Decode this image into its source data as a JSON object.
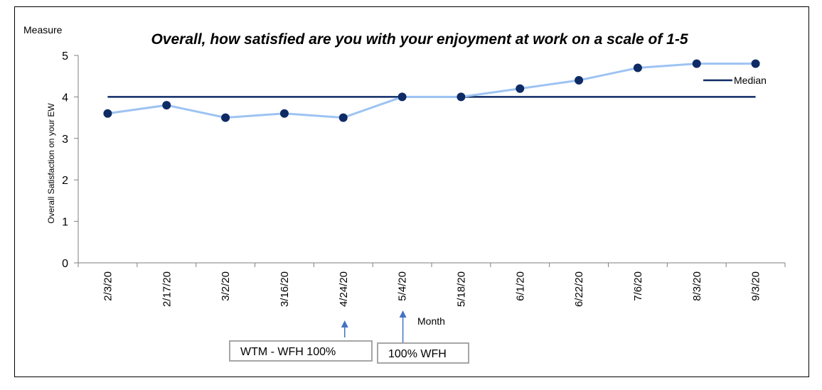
{
  "chart_data": {
    "type": "line",
    "title": "Overall, how satisfied are you with your enjoyment at work on a scale of 1-5",
    "corner_label": "Measure",
    "ylabel": "Overall Satisfaction on your EW",
    "xlabel": "Month",
    "ylim": [
      0,
      5
    ],
    "yticks": [
      0,
      1,
      2,
      3,
      4,
      5
    ],
    "categories": [
      "2/3/20",
      "2/17/20",
      "3/2/20",
      "3/16/20",
      "4/24/20",
      "5/4/20",
      "5/18/20",
      "6/1/20",
      "6/22/20",
      "7/6/20",
      "8/3/20",
      "9/3/20"
    ],
    "series": [
      {
        "values": [
          3.6,
          3.8,
          3.5,
          3.6,
          3.5,
          4.0,
          4.0,
          4.2,
          4.4,
          4.7,
          4.8,
          4.8
        ],
        "line_color": "#9dc3f2",
        "marker_color": "#0f2b66"
      }
    ],
    "reference_line": {
      "name": "Median",
      "value": 4,
      "color": "#0f2b66"
    },
    "legend": {
      "entry": "Median",
      "placement": "top-right"
    },
    "grid": false,
    "annotations": [
      {
        "text": "WTM - WFH 100%",
        "category": "4/24/20"
      },
      {
        "text": "100% WFH",
        "category": "5/4/20"
      }
    ],
    "arrow_color": "#4472c4"
  }
}
